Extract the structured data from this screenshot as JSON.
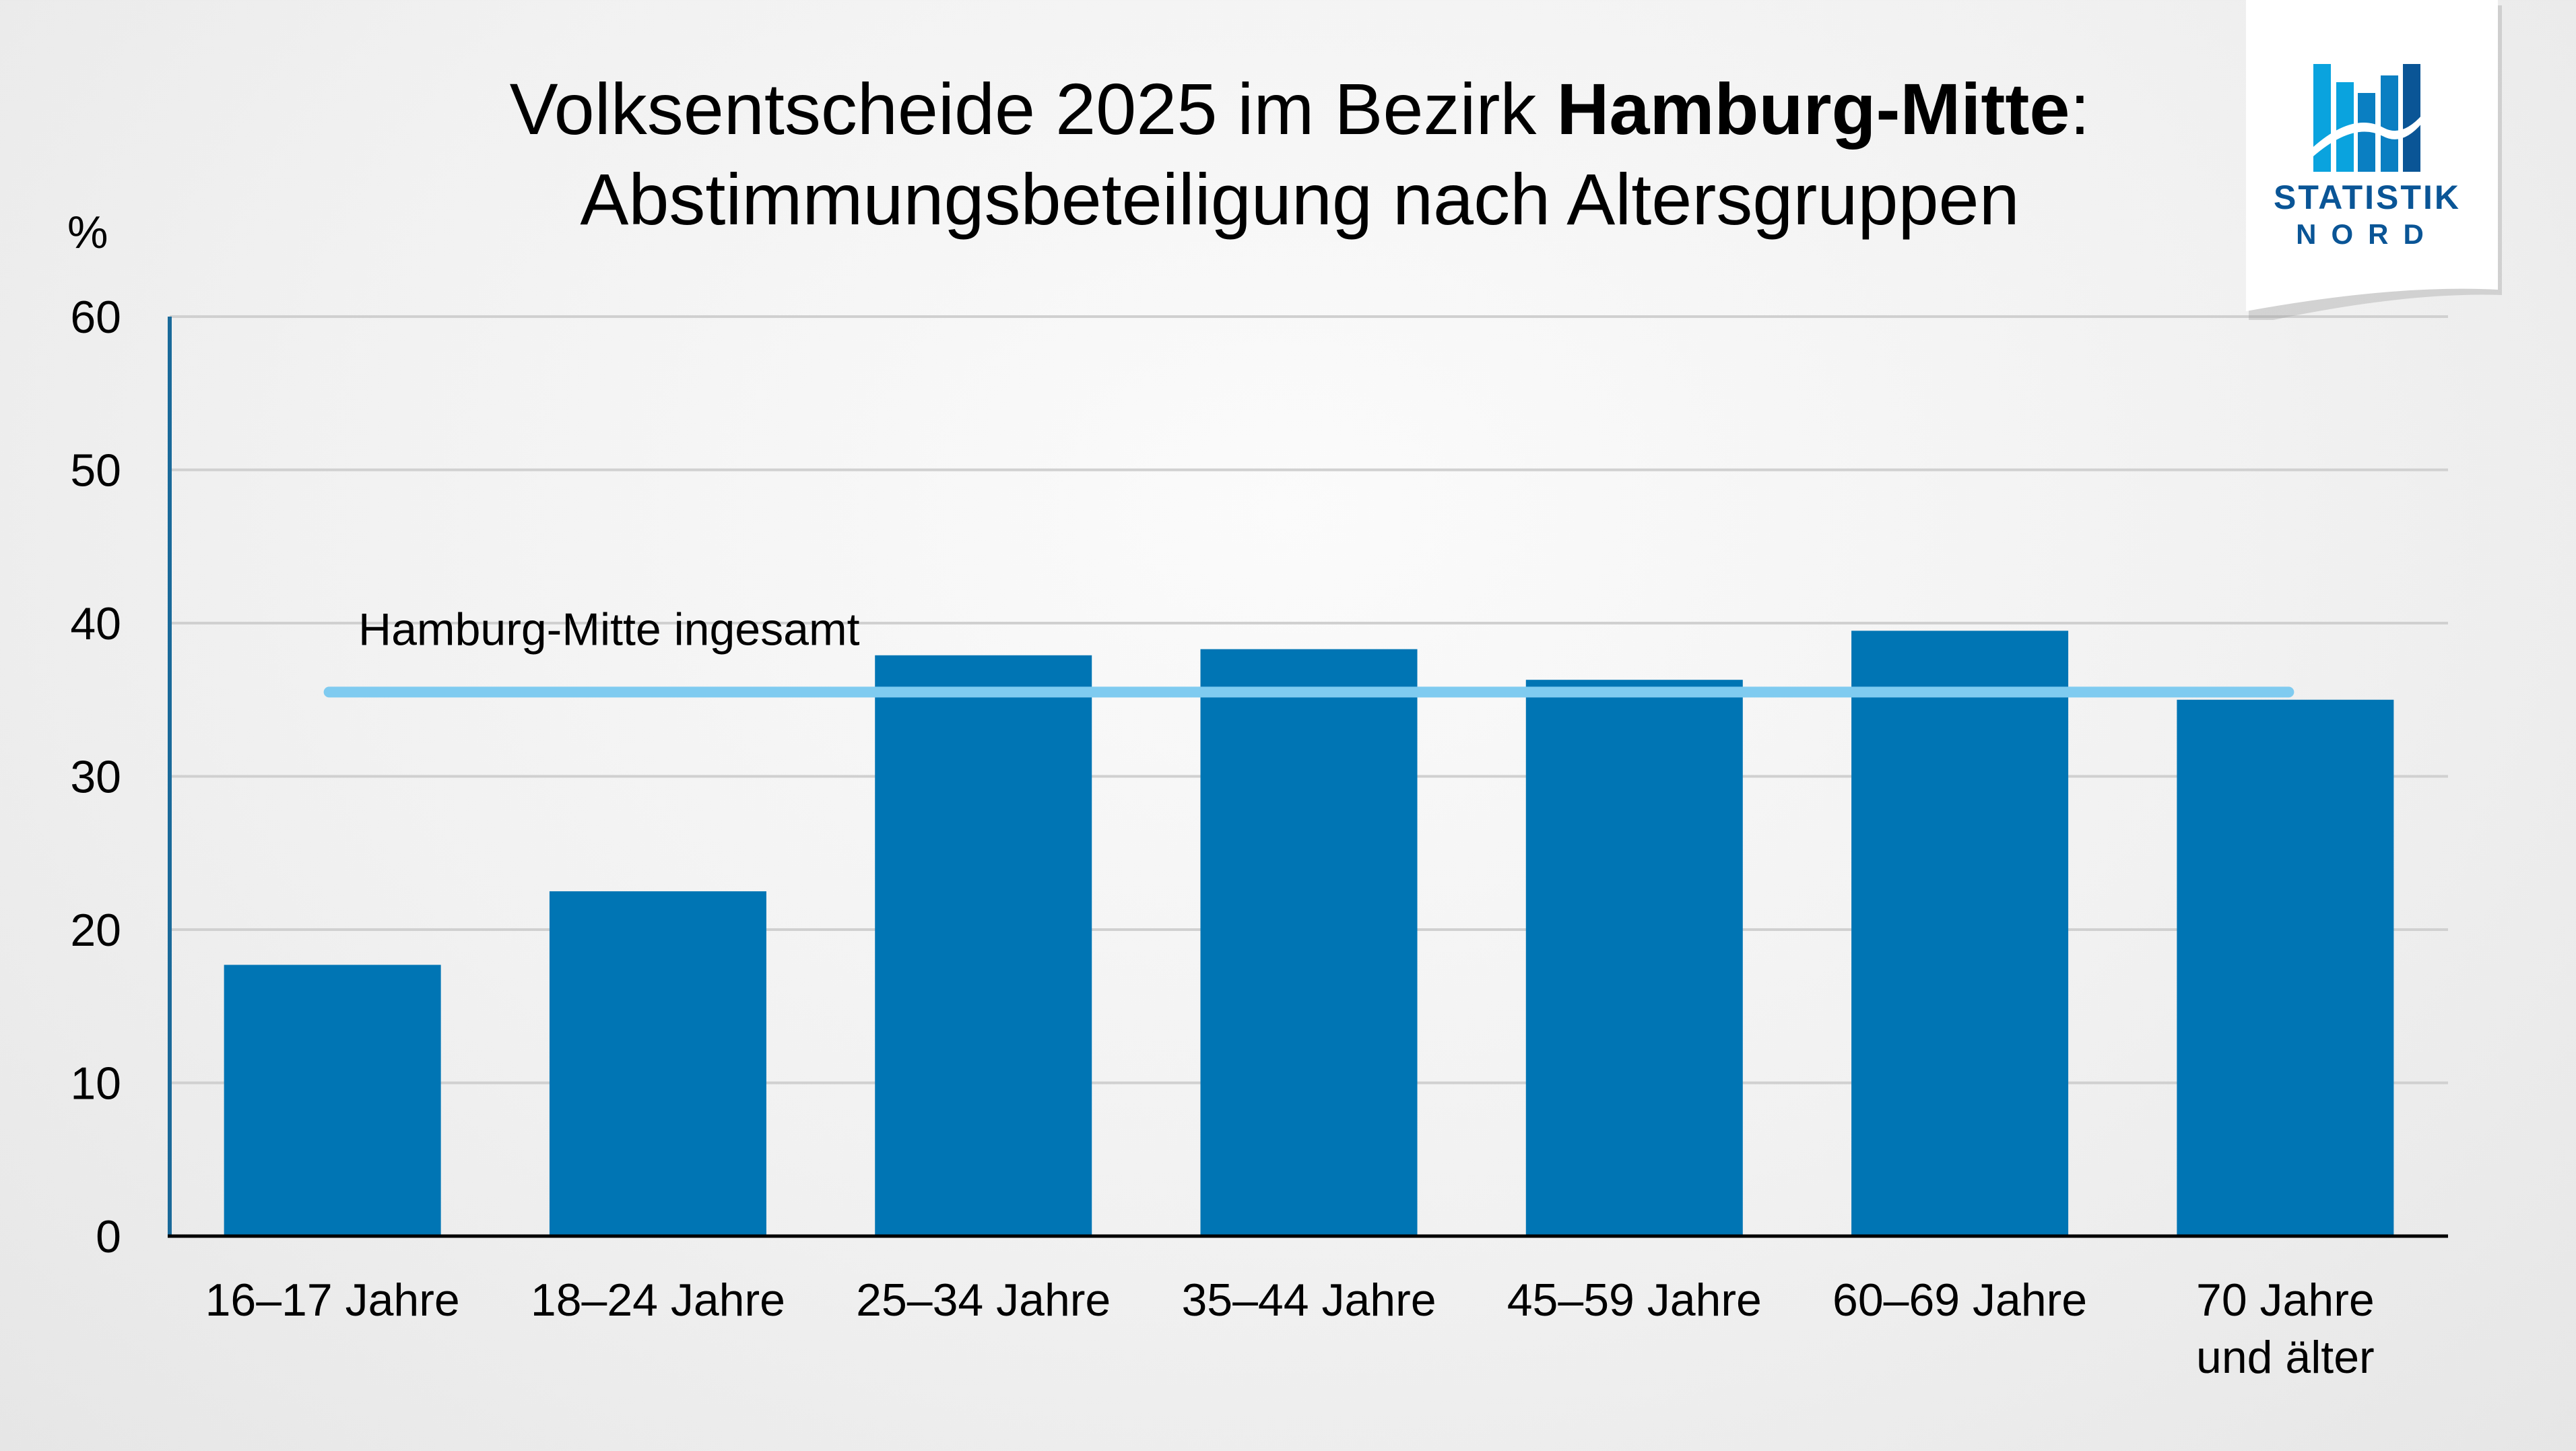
{
  "title": {
    "line1_prefix": "Volksentscheide 2025 im Bezirk ",
    "line1_bold": "Hamburg-Mitte",
    "line1_suffix": ":",
    "line2": "Abstimmungsbeteiligung nach Altersgruppen"
  },
  "logo": {
    "line1": "STATISTIK",
    "line2": "NORD"
  },
  "chart_data": {
    "type": "bar",
    "title": "Volksentscheide 2025 im Bezirk Hamburg-Mitte: Abstimmungsbeteiligung nach Altersgruppen",
    "ylabel": "%",
    "xlabel": "",
    "ylim": [
      0,
      60
    ],
    "yticks": [
      0,
      10,
      20,
      30,
      40,
      50,
      60
    ],
    "grid": true,
    "categories": [
      [
        "16–17 Jahre"
      ],
      [
        "18–24 Jahre"
      ],
      [
        "25–34 Jahre"
      ],
      [
        "35–44 Jahre"
      ],
      [
        "45–59 Jahre"
      ],
      [
        "60–69 Jahre"
      ],
      [
        "70 Jahre",
        "und älter"
      ]
    ],
    "series": [
      {
        "name": "Abstimmungsbeteiligung",
        "values": [
          17.7,
          22.5,
          37.9,
          38.3,
          36.3,
          39.5,
          35.0
        ]
      }
    ],
    "reference_line": {
      "label": "Hamburg-Mitte ingesamt",
      "value": 35.5
    },
    "colors": {
      "bar": "#0075b4",
      "reference_line": "#7fcbf0",
      "axis": "#1a6a9a",
      "grid": "#d0d0d0"
    }
  }
}
